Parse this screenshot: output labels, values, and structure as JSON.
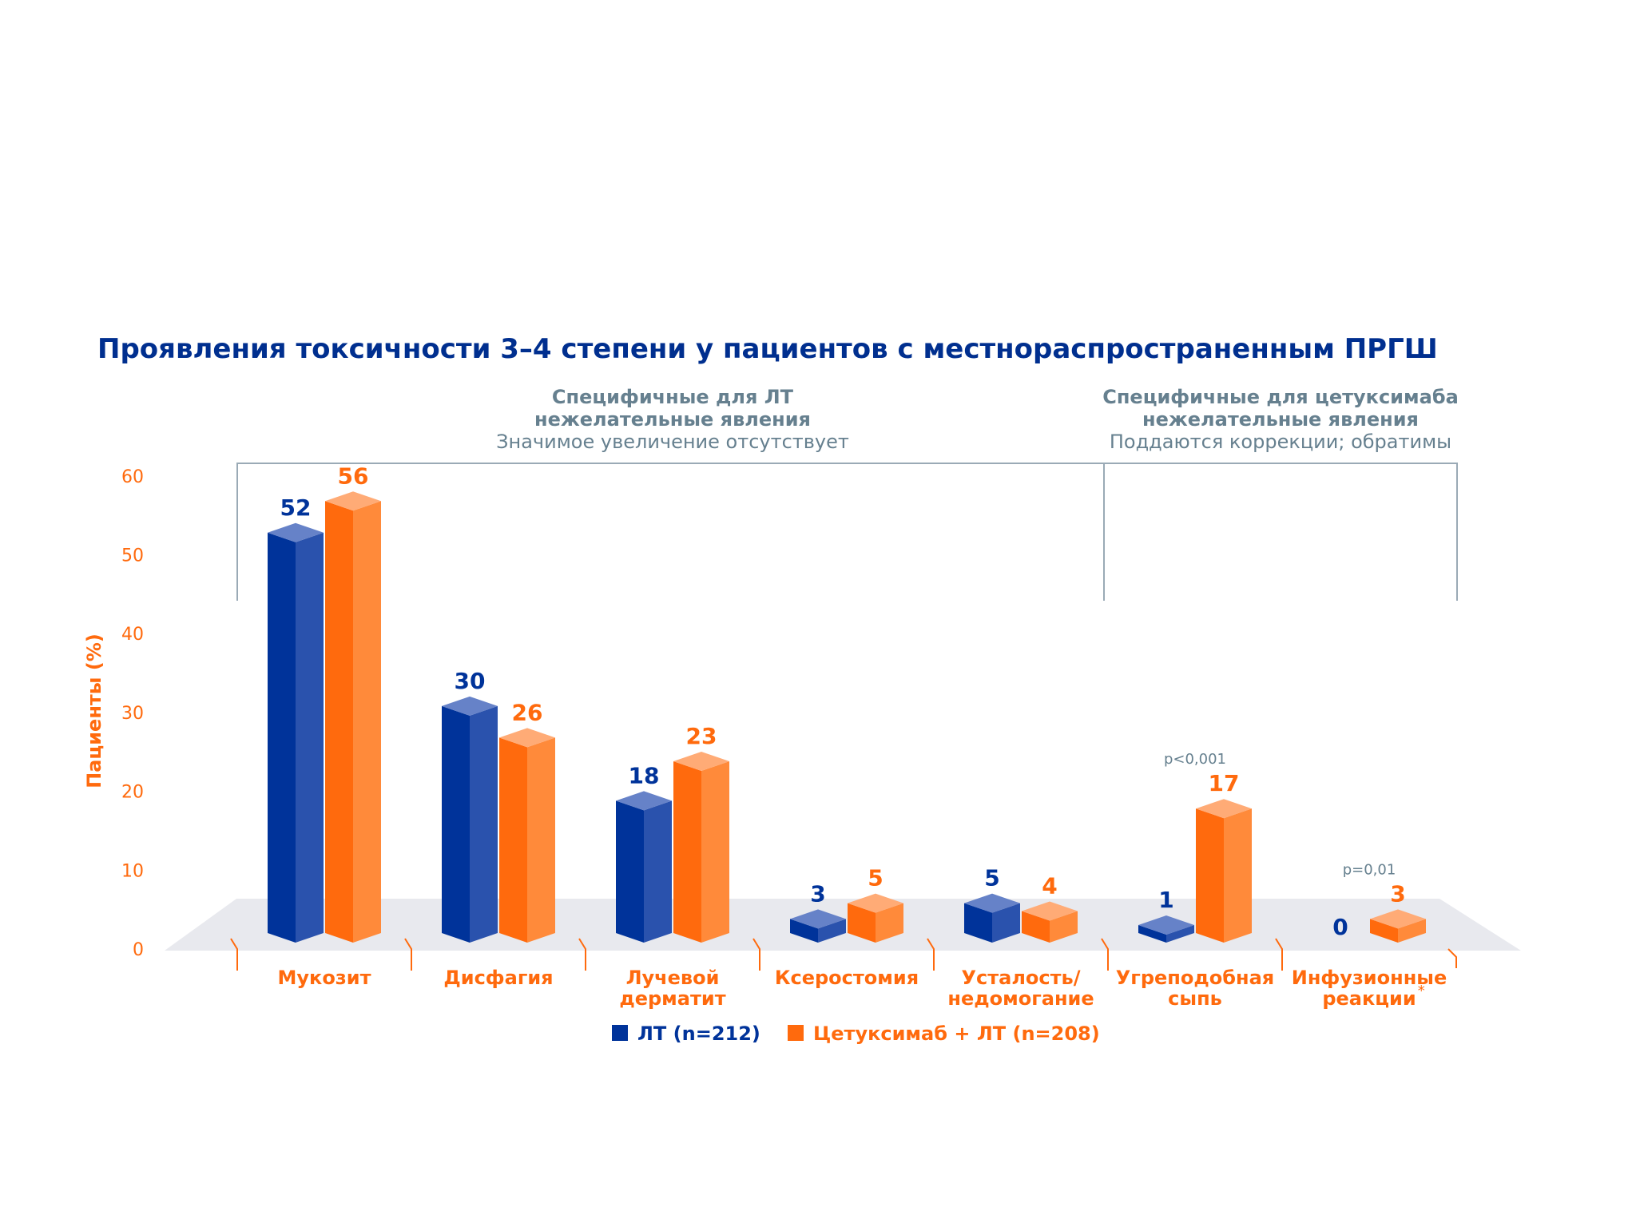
{
  "colors": {
    "blue": "#00339a",
    "blue_side": "#2a52ad",
    "blue_top": "#6682c8",
    "orange": "#ff6a0d",
    "orange_side": "#ff8a3a",
    "orange_top": "#ffab76",
    "title": "#002f8f",
    "grey_text": "#66808f",
    "bracket": "#9aaab6",
    "floor": "#e8e9ee"
  },
  "chart_data": {
    "type": "bar",
    "title": "Проявления токсичности 3–4 степени у пациентов с местнораспространенным ПРГШ",
    "ylabel": "Пациенты (%)",
    "ylim": [
      0,
      60
    ],
    "yticks": [
      "0",
      "10",
      "20",
      "30",
      "40",
      "50",
      "60"
    ],
    "categories": [
      {
        "line1": "Мукозит",
        "line2": "",
        "sup": ""
      },
      {
        "line1": "Дисфагия",
        "line2": "",
        "sup": ""
      },
      {
        "line1": "Лучевой",
        "line2": "дерматит",
        "sup": ""
      },
      {
        "line1": "Ксеростомия",
        "line2": "",
        "sup": ""
      },
      {
        "line1": "Усталость/",
        "line2": "недомогание",
        "sup": ""
      },
      {
        "line1": "Угреподобная",
        "line2": "сыпь",
        "sup": ""
      },
      {
        "line1": "Инфузионные",
        "line2": "реакции",
        "sup": "*"
      }
    ],
    "series": [
      {
        "name": "ЛТ (n=212)",
        "values": [
          52,
          30,
          18,
          3,
          5,
          1,
          0
        ]
      },
      {
        "name": "Цетуксимаб + ЛТ (n=208)",
        "values": [
          56,
          26,
          23,
          5,
          4,
          17,
          3
        ]
      }
    ],
    "annotations": [
      {
        "category_index": 5,
        "text": "p<0,001"
      },
      {
        "category_index": 6,
        "text": "p=0,01"
      }
    ],
    "groups": [
      {
        "line1": "Специфичные для ЛТ",
        "line2": "нежелательные явления",
        "line3": "Значимое увеличение отсутствует"
      },
      {
        "line1": "Специфичные для цетуксимаба",
        "line2": "нежелательные явления",
        "line3": "Поддаются коррекции; обратимы"
      }
    ],
    "legend_position": "bottom",
    "grid": false
  }
}
